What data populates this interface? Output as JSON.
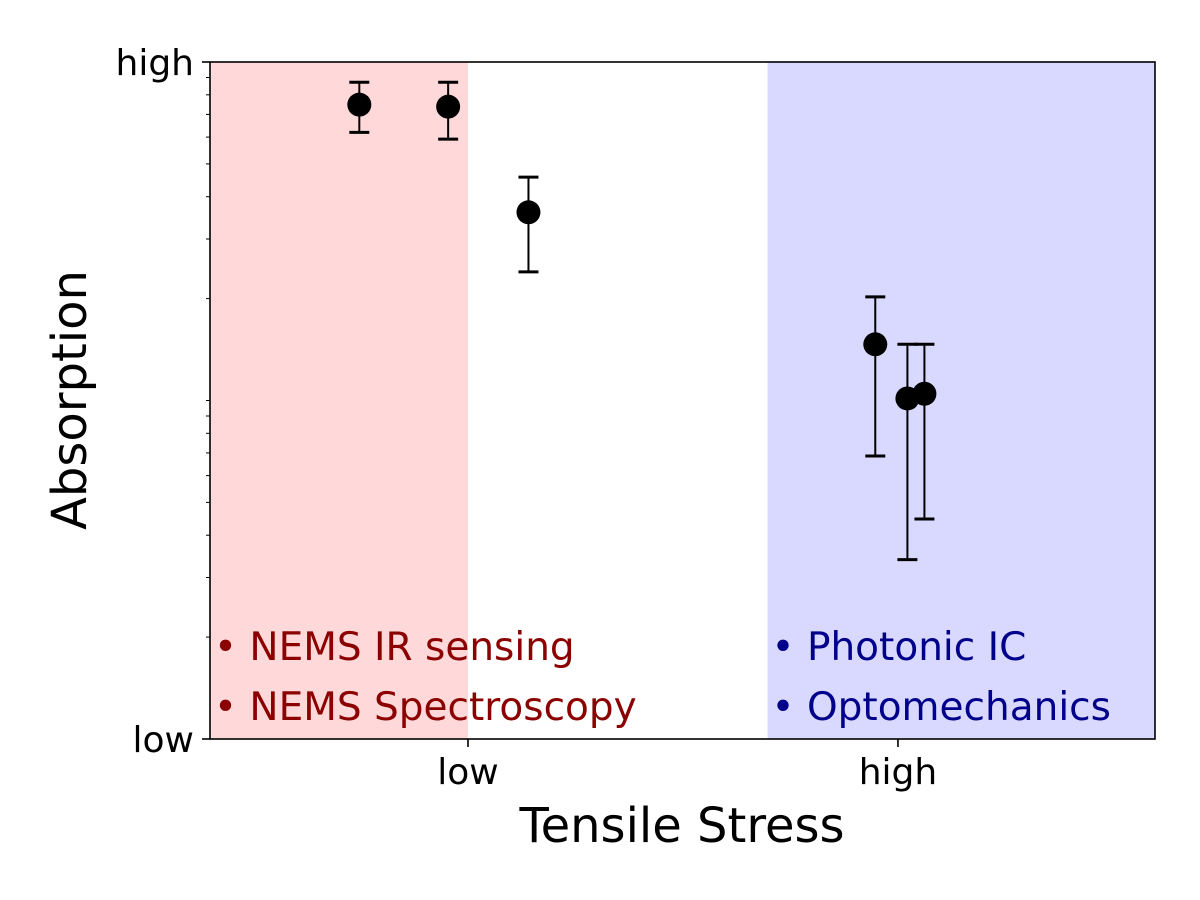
{
  "chart_data": {
    "type": "scatter",
    "title": "",
    "xlabel": "Tensile Stress",
    "ylabel": "Absorption",
    "xlim": [
      0,
      1
    ],
    "ylim": [
      0,
      1
    ],
    "y_scale": "log",
    "grid": false,
    "x_ticks": [
      {
        "value": 0.273,
        "label": "low"
      },
      {
        "value": 0.728,
        "label": "high"
      }
    ],
    "y_ticks": [
      {
        "value": 0.0,
        "label": "low"
      },
      {
        "value": 1.0,
        "label": "high"
      }
    ],
    "points": [
      {
        "x": 0.158,
        "y": 0.937,
        "y_low": 0.896,
        "y_high": 0.97
      },
      {
        "x": 0.252,
        "y": 0.934,
        "y_low": 0.886,
        "y_high": 0.97
      },
      {
        "x": 0.337,
        "y": 0.778,
        "y_low": 0.69,
        "y_high": 0.83
      },
      {
        "x": 0.704,
        "y": 0.583,
        "y_low": 0.418,
        "y_high": 0.653
      },
      {
        "x": 0.738,
        "y": 0.503,
        "y_low": 0.265,
        "y_high": 0.583
      },
      {
        "x": 0.756,
        "y": 0.51,
        "y_low": 0.325,
        "y_high": 0.583
      }
    ],
    "regions": [
      {
        "x_range": [
          0,
          0.273
        ],
        "color": "#ffb3b3",
        "text_color": "#8b0000",
        "labels": [
          "• NEMS IR sensing",
          "• NEMS Spectroscopy"
        ]
      },
      {
        "x_range": [
          0.59,
          1
        ],
        "color": "#b3b3ff",
        "text_color": "#00008b",
        "labels": [
          "• Photonic IC",
          "• Optomechanics"
        ]
      }
    ]
  }
}
